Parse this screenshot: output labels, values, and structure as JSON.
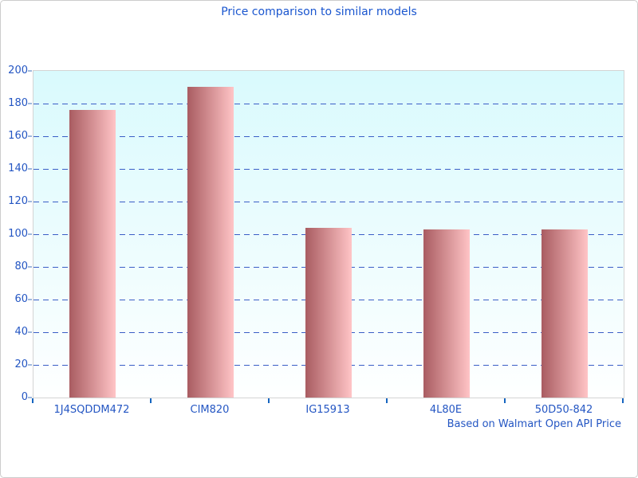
{
  "chart_data": {
    "type": "bar",
    "title": "Price comparison to similar models",
    "note": "Based on Walmart Open API Price",
    "categories": [
      "1J4SQDDM472",
      "CIM820",
      "IG15913",
      "4L80E",
      "50D50-842"
    ],
    "values": [
      176,
      190,
      104,
      103,
      103
    ],
    "xlabel": "",
    "ylabel": "",
    "ylim": [
      0,
      200
    ],
    "ytick_step": 20,
    "ytick_labels": [
      "0",
      "20",
      "40",
      "60",
      "80",
      "100",
      "120",
      "140",
      "160",
      "180",
      "200"
    ],
    "grid": "horizontal-dashed",
    "legend_position": "none"
  },
  "colors": {
    "title_text": "#1a56cf",
    "axis_label_text": "#2456c3",
    "footnote_text": "#2456c3",
    "gridline": "#3a5ec6",
    "bar_gradient_start": "#a95c61",
    "bar_gradient_end": "#ffc4c6",
    "plot_bg_top": "#d9fafd",
    "plot_bg_bottom": "#feffff",
    "plot_border": "#d4d4d4",
    "frame_border": "#cccccc",
    "x_tick": "#1565c0",
    "y_tick": "#9fb9dc"
  }
}
